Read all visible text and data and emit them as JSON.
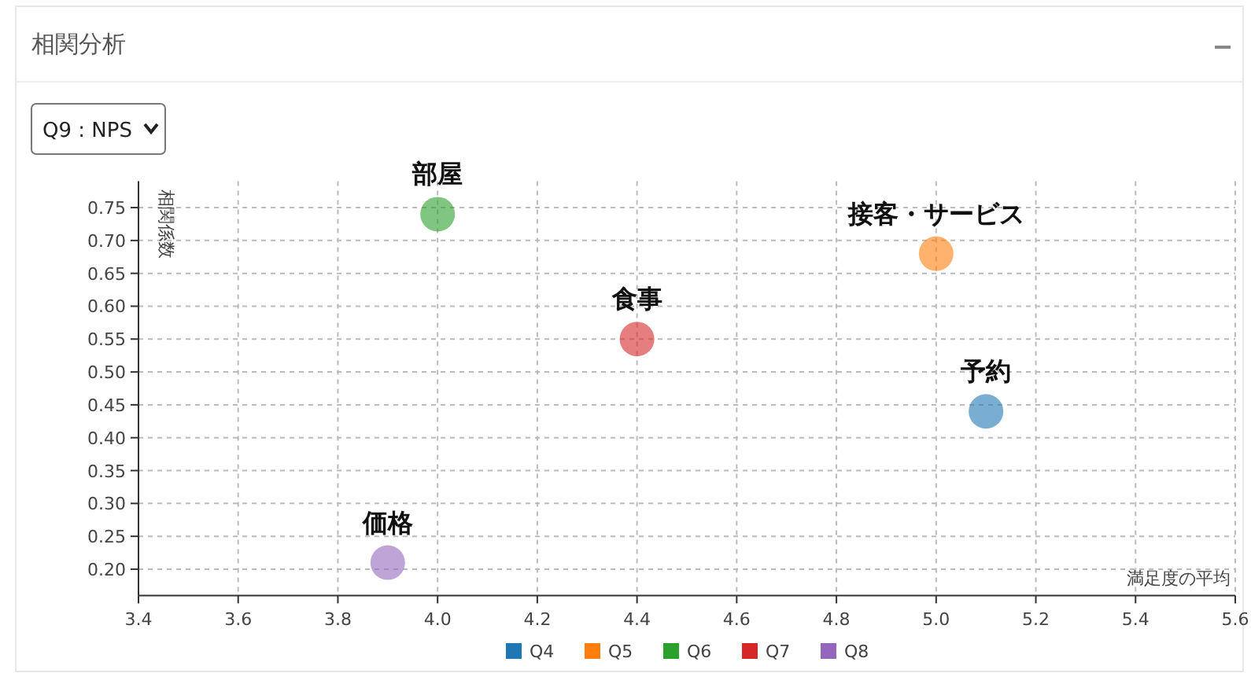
{
  "chart_data": {
    "type": "scatter",
    "title": "相関分析",
    "xlabel": "満足度の平均",
    "ylabel": "相関係数",
    "annotations": [
      "Q9 : NPS",
      {
        "text": "予約",
        "x": 5.1,
        "y": 0.44
      },
      {
        "text": "接客・サービス",
        "x": 5.0,
        "y": 0.68
      },
      {
        "text": "部屋",
        "x": 4.0,
        "y": 0.74
      },
      {
        "text": "食事",
        "x": 4.4,
        "y": 0.55
      },
      {
        "text": "価格",
        "x": 3.9,
        "y": 0.21
      }
    ],
    "series": [
      {
        "name": "Q4",
        "color": "#1f77b4",
        "x": [
          5.1
        ],
        "values": [
          0.44
        ]
      },
      {
        "name": "Q5",
        "color": "#ff7f0e",
        "x": [
          5.0
        ],
        "values": [
          0.68
        ]
      },
      {
        "name": "Q6",
        "color": "#2ca02c",
        "x": [
          4.0
        ],
        "values": [
          0.74
        ]
      },
      {
        "name": "Q7",
        "color": "#d62728",
        "x": [
          4.4
        ],
        "values": [
          0.55
        ]
      },
      {
        "name": "Q8",
        "color": "#9467bd",
        "x": [
          3.9
        ],
        "values": [
          0.21
        ]
      }
    ],
    "xlim": [
      3.4,
      5.6
    ],
    "xticks": [
      3.4,
      3.6,
      3.8,
      {
        "value": 4,
        "label": "4.0"
      },
      4.2,
      4.4,
      4.6,
      4.8,
      {
        "value": 5,
        "label": "5.0"
      },
      5.2,
      5.4,
      5.6
    ],
    "ylim": [
      0.16,
      0.79
    ],
    "yticks": [
      {
        "value": 0.2,
        "label": "0.20"
      },
      0.25,
      {
        "value": 0.3,
        "label": "0.30"
      },
      0.35,
      {
        "value": 0.4,
        "label": "0.40"
      },
      0.45,
      {
        "value": 0.5,
        "label": "0.50"
      },
      0.55,
      {
        "value": 0.6,
        "label": "0.60"
      },
      0.65,
      {
        "value": 0.7,
        "label": "0.70"
      },
      0.75
    ],
    "grid": true,
    "legend": "bottom",
    "marker": "circle"
  }
}
